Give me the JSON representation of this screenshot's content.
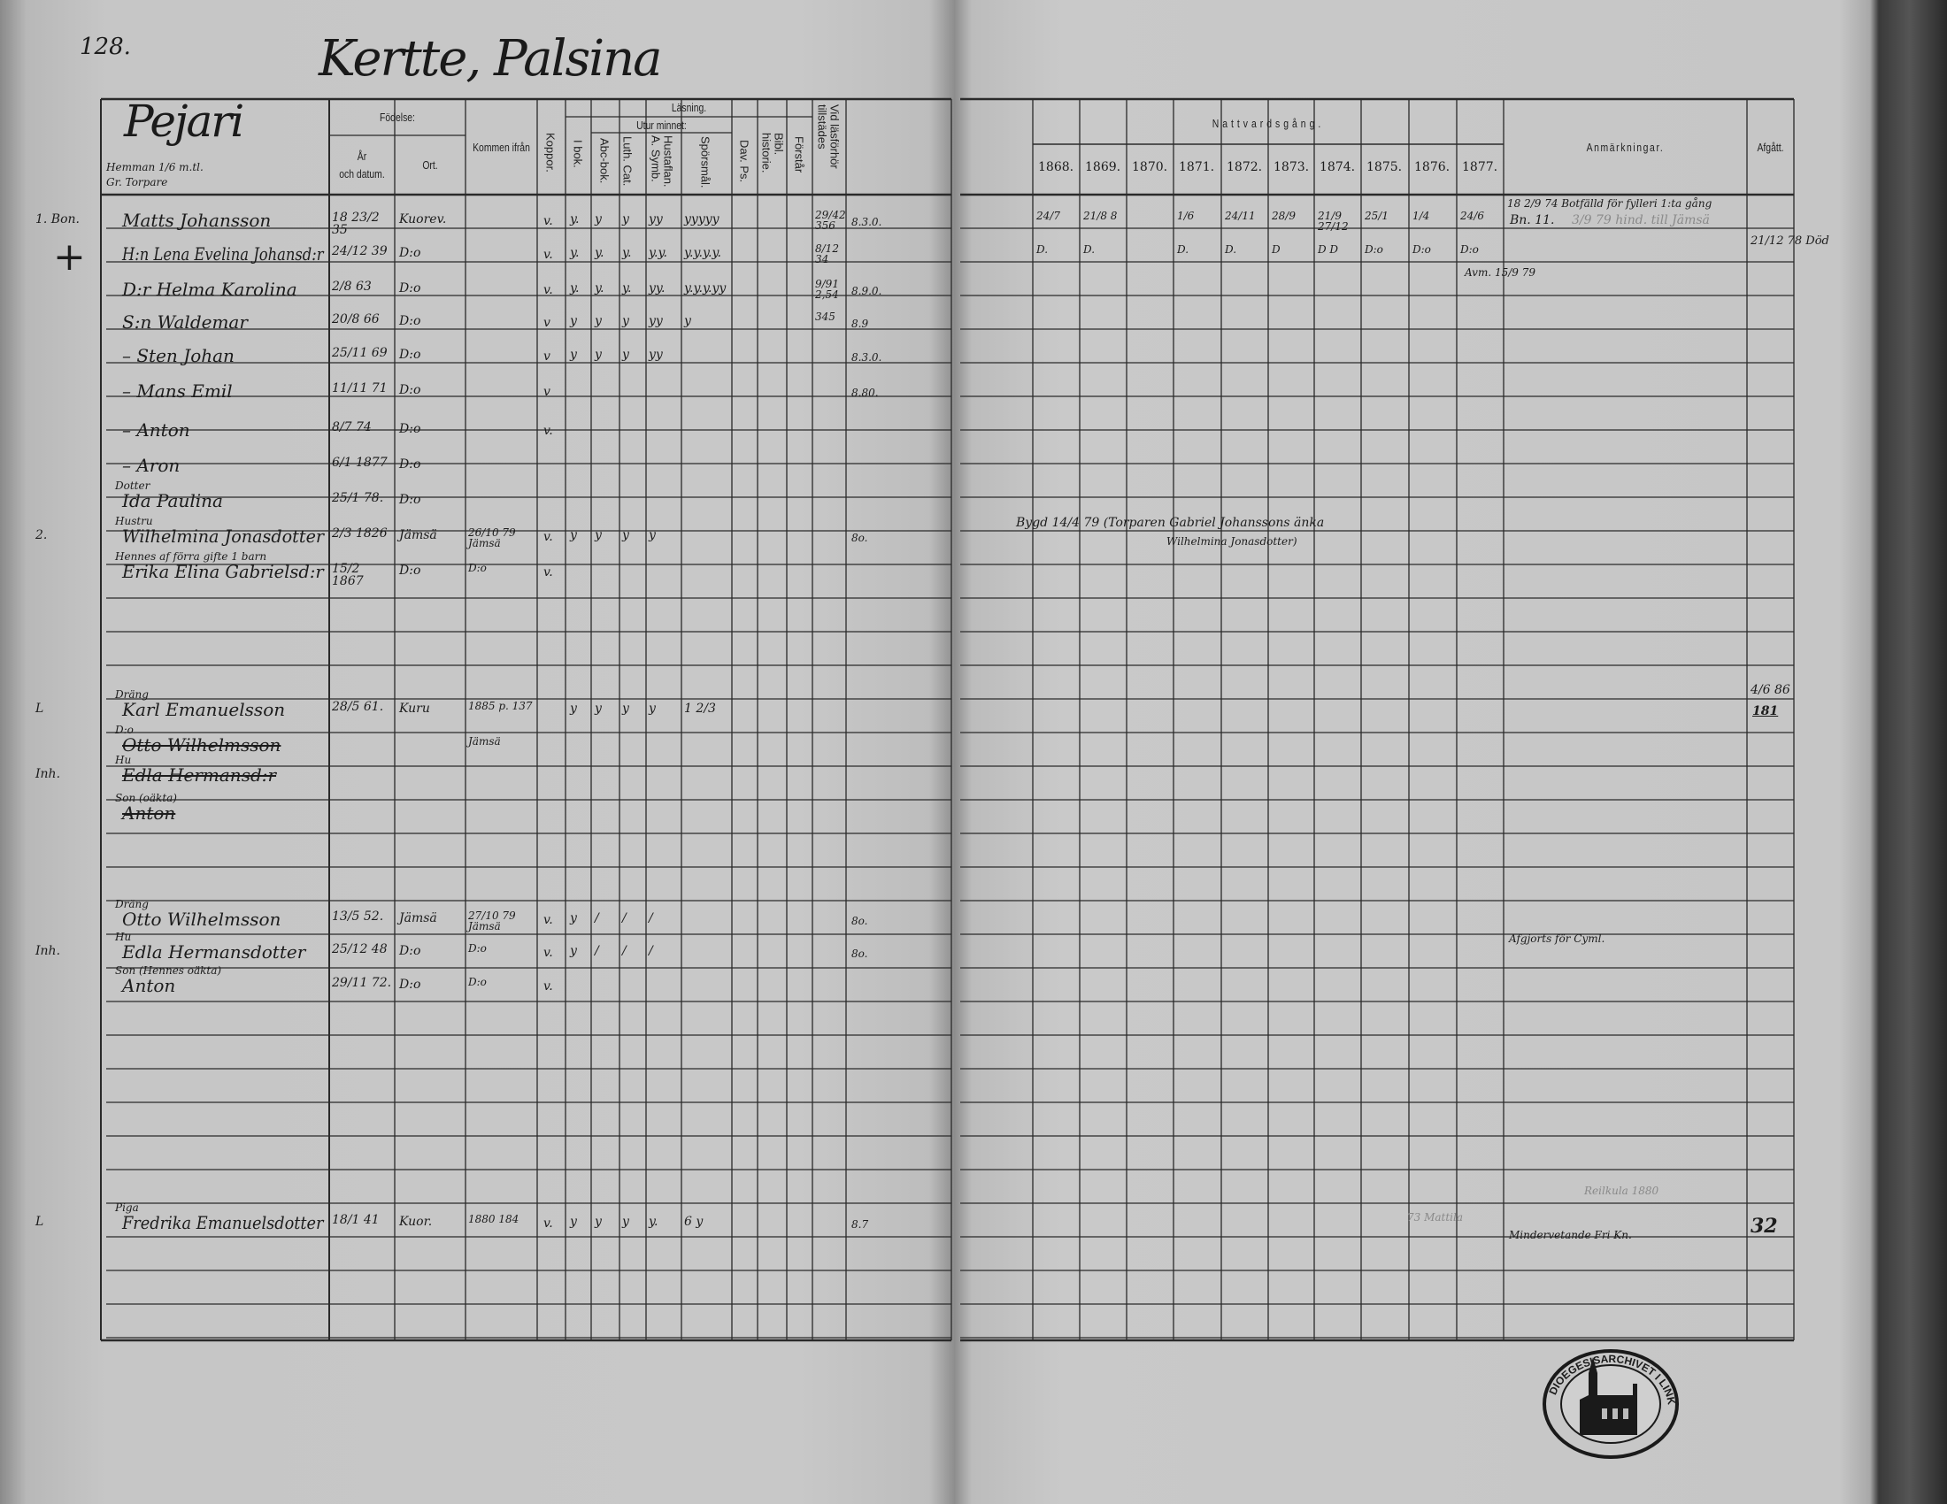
{
  "page_number": "128.",
  "title": "Kertte, Palsina",
  "left_header": {
    "village": "Pejari",
    "holding": "Hemman 1/6 m.tl.",
    "holding_sub": "Gr. Torpare",
    "fodelse": "Födelse:",
    "ar": "År",
    "och_datum": "och datum.",
    "ort": "Ort.",
    "kommen": "Kommen ifrån",
    "koppor": "Koppor.",
    "lasning": "Läsning.",
    "i_bok": "I bok.",
    "utur": "Utur minnet:",
    "abc": "Abc-bok.",
    "luth": "Luth. Cat.",
    "husf": "Hustaflan. A. Symb.",
    "spors": "Spörsmål.",
    "dav": "Dav. Ps.",
    "bibl": "Bibl. historie.",
    "forstar": "Förstår",
    "vid": "Vid läsförhör tillstädes"
  },
  "right_header": {
    "nattvard": "Nattvardsgång.",
    "years": [
      "1868.",
      "1869.",
      "1870.",
      "1871.",
      "1872.",
      "1873.",
      "1874.",
      "1875.",
      "1876.",
      "1877."
    ],
    "anm": "Anmärkningar.",
    "afgatt": "Afgått."
  },
  "entries": [
    {
      "margin": "1. Bon.",
      "role": "",
      "name": "Matts Johansson",
      "birth": "18 23/2 35",
      "place": "Kuorev.",
      "from": "",
      "koppor": "v.",
      "reading": [
        "y.",
        "y",
        "y",
        "yy",
        "yyyyy"
      ],
      "vid": "29/42 356",
      "note": "8.3.0."
    },
    {
      "margin": "+",
      "role": "",
      "name": "H:n Lena Evelina Johansd:r",
      "birth": "24/12 39",
      "place": "D:o",
      "from": "",
      "koppor": "v.",
      "reading": [
        "y.",
        "y.",
        "y.",
        "y.y.",
        "y.y.y.y."
      ],
      "vid": "8/12 34",
      "note": ""
    },
    {
      "margin": "",
      "role": "",
      "name": "D:r Helma Karolina",
      "birth": "2/8 63",
      "place": "D:o",
      "from": "",
      "koppor": "v.",
      "reading": [
        "y.",
        "y.",
        "y.",
        "yy.",
        "y.y.y.yy"
      ],
      "vid": "9/91 2,54",
      "note": "8.9.0."
    },
    {
      "margin": "",
      "role": "",
      "name": "S:n Waldemar",
      "birth": "20/8 66",
      "place": "D:o",
      "from": "",
      "koppor": "v",
      "reading": [
        "y",
        "y",
        "y",
        "yy",
        "y"
      ],
      "vid": "345",
      "note": "8.9"
    },
    {
      "margin": "",
      "role": "",
      "name": "– Sten Johan",
      "birth": "25/11 69",
      "place": "D:o",
      "from": "",
      "koppor": "v",
      "reading": [
        "y",
        "y",
        "y",
        "yy",
        ""
      ],
      "vid": "",
      "note": "8.3.0."
    },
    {
      "margin": "",
      "role": "",
      "name": "– Mans Emil",
      "birth": "11/11 71",
      "place": "D:o",
      "from": "",
      "koppor": "v",
      "reading": [
        "",
        "",
        "",
        "",
        ""
      ],
      "vid": "",
      "note": "8.80."
    },
    {
      "margin": "",
      "role": "",
      "name": "– Anton",
      "birth": "8/7 74",
      "place": "D:o",
      "from": "",
      "koppor": "v.",
      "reading": [
        "",
        "",
        "",
        "",
        ""
      ],
      "vid": "",
      "note": ""
    },
    {
      "margin": "",
      "role": "",
      "name": "– Aron",
      "birth": "6/1 1877",
      "place": "D:o",
      "from": "",
      "koppor": "",
      "reading": [
        "",
        "",
        "",
        "",
        ""
      ],
      "vid": "",
      "note": ""
    },
    {
      "margin": "",
      "role": "Dotter",
      "name": "Ida Paulina",
      "birth": "25/1 78.",
      "place": "D:o",
      "from": "",
      "koppor": "",
      "reading": [
        "",
        "",
        "",
        "",
        ""
      ],
      "vid": "",
      "note": ""
    },
    {
      "margin": "2.",
      "role": "Hustru",
      "name": "Wilhelmina Jonasdotter",
      "birth": "2/3 1826",
      "place": "Jämsä",
      "from": "26/10 79 Jämsä",
      "koppor": "v.",
      "reading": [
        "y",
        "y",
        "y",
        "y",
        ""
      ],
      "vid": "",
      "note": "8o."
    },
    {
      "margin": "",
      "role": "Hennes af förra gifte 1 barn",
      "name": "Erika Elina Gabrielsd:r",
      "birth": "15/2 1867",
      "place": "D:o",
      "from": "D:o",
      "koppor": "v.",
      "reading": [
        "",
        "",
        "",
        "",
        ""
      ],
      "vid": "",
      "note": ""
    },
    {
      "margin": "L",
      "role": "Dräng",
      "name": "Karl Emanuelsson",
      "birth": "28/5 61.",
      "place": "Kuru",
      "from": "1885 p. 137",
      "koppor": "",
      "reading": [
        "y",
        "y",
        "y",
        "y",
        "1 2/3"
      ],
      "vid": "",
      "note": ""
    },
    {
      "margin": "",
      "role": "D:o",
      "name": "Otto Wilhelmsson",
      "birth": "",
      "place": "",
      "from": "Jämsä",
      "koppor": "",
      "reading": [
        "",
        "",
        "",
        "",
        ""
      ],
      "vid": "",
      "note": "",
      "struck": true
    },
    {
      "margin": "Inh.",
      "role": "Hu",
      "name": "Edla Hermansd:r",
      "birth": "",
      "place": "",
      "from": "",
      "koppor": "",
      "reading": [
        "",
        "",
        "",
        "",
        ""
      ],
      "vid": "",
      "note": "",
      "struck": true
    },
    {
      "margin": "",
      "role": "Son (oäkta)",
      "name": "Anton",
      "birth": "",
      "place": "",
      "from": "",
      "koppor": "",
      "reading": [
        "",
        "",
        "",
        "",
        ""
      ],
      "vid": "",
      "note": "",
      "struck": true
    },
    {
      "margin": "",
      "role": "Dräng",
      "name": "Otto Wilhelmsson",
      "birth": "13/5 52.",
      "place": "Jämsä",
      "from": "27/10 79 Jämsä",
      "koppor": "v.",
      "reading": [
        "y",
        "/",
        "/",
        "/",
        ""
      ],
      "vid": "",
      "note": "8o."
    },
    {
      "margin": "Inh.",
      "role": "Hu",
      "name": "Edla Hermansdotter",
      "birth": "25/12 48",
      "place": "D:o",
      "from": "D:o",
      "koppor": "v.",
      "reading": [
        "y",
        "/",
        "/",
        "/",
        ""
      ],
      "vid": "",
      "note": "8o."
    },
    {
      "margin": "",
      "role": "Son (Hennes oäkta)",
      "name": "Anton",
      "birth": "29/11 72.",
      "place": "D:o",
      "from": "D:o",
      "koppor": "v.",
      "reading": [
        "",
        "",
        "",
        "",
        ""
      ],
      "vid": "",
      "note": ""
    },
    {
      "margin": "L",
      "role": "Piga",
      "name": "Fredrika Emanuelsdotter",
      "birth": "18/1 41",
      "place": "Kuor.",
      "from": "1880 184",
      "koppor": "v.",
      "reading": [
        "y",
        "y",
        "y",
        "y.",
        "6 y"
      ],
      "vid": "",
      "note": "8.7"
    }
  ],
  "communion": [
    {
      "entry": 0,
      "years": [
        "24/7",
        "21/8 8",
        "",
        "1/6",
        "24/11",
        "28/9",
        "21/9 27/12",
        "25/1",
        "1/4",
        "24/6"
      ]
    },
    {
      "entry": 1,
      "years": [
        "D.",
        "D.",
        "",
        "D.",
        "D.",
        "D",
        "D D",
        "D:o",
        "D:o",
        "D:o"
      ]
    }
  ],
  "remarks": {
    "r0_anm": "18 2/9 74 Botfälld för fylleri 1:ta gång",
    "r0_anm2": "Bn. 11.",
    "r0_anm_faint": "3/9 79 hind. till Jämsä",
    "r1_afgatt": "21/12 78 Död",
    "r2_avm": "Avm. 15/9 79",
    "r9_note": "Bygd 14/4 79 (Torparen Gabriel Johanssons änka",
    "r9_note2": "Wilhelmina Jonasdotter)",
    "r11_afgatt": "4/6 86",
    "r11_afgatt2": "181",
    "r16_anm": "Afgjorts för Cyml.",
    "r18_mattila": "73 Mattila",
    "r18_anm": "Mindervetande   Fri Kn.",
    "r18_anm_faint": "Reilkula 1880",
    "r18_afgatt": "32"
  },
  "stamp_text": "DIOEGESISARCHIVET I LINKÖPING",
  "colors": {
    "paper": "#c8c8c8",
    "ink": "#1c1c1c",
    "binding": "#2a2a2a"
  }
}
